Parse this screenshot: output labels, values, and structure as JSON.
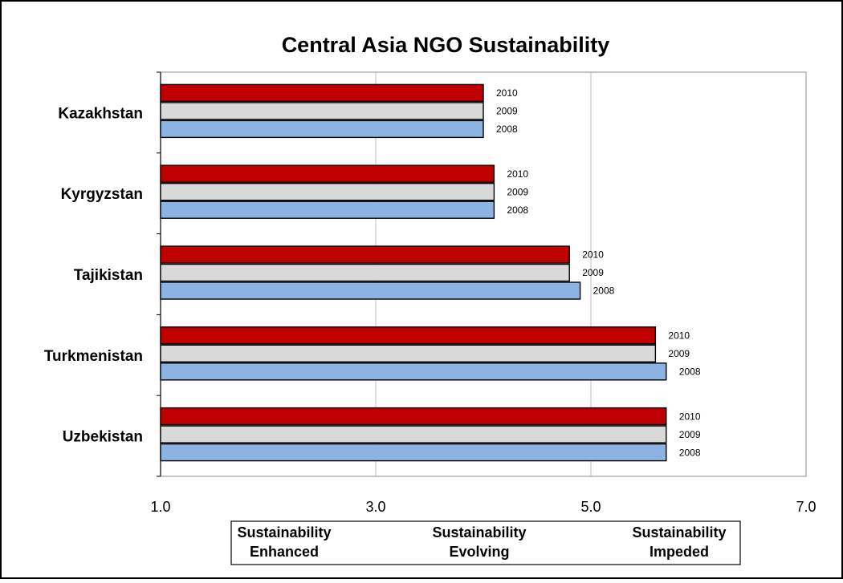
{
  "chart_data": {
    "type": "bar",
    "orientation": "horizontal",
    "title": "Central Asia NGO Sustainability",
    "categories": [
      "Kazakhstan",
      "Kyrgyzstan",
      "Tajikistan",
      "Turkmenistan",
      "Uzbekistan"
    ],
    "series": [
      {
        "name": "2010",
        "color": "#c00000",
        "values": [
          4.0,
          4.1,
          4.8,
          5.6,
          5.7
        ]
      },
      {
        "name": "2009",
        "color": "#d9d9d9",
        "values": [
          4.0,
          4.1,
          4.8,
          5.6,
          5.7
        ]
      },
      {
        "name": "2008",
        "color": "#8db3e2",
        "values": [
          4.0,
          4.1,
          4.9,
          5.7,
          5.7
        ]
      }
    ],
    "bar_labels": [
      "2010",
      "2009",
      "2008"
    ],
    "xlim": [
      1.0,
      7.0
    ],
    "xticks": [
      "1.0",
      "3.0",
      "5.0",
      "7.0"
    ],
    "grid": "vertical",
    "legend": "none",
    "scale_legend": [
      {
        "line1": "Sustainability",
        "line2": "Enhanced"
      },
      {
        "line1": "Sustainability",
        "line2": "Evolving"
      },
      {
        "line1": "Sustainability",
        "line2": "Impeded"
      }
    ]
  }
}
